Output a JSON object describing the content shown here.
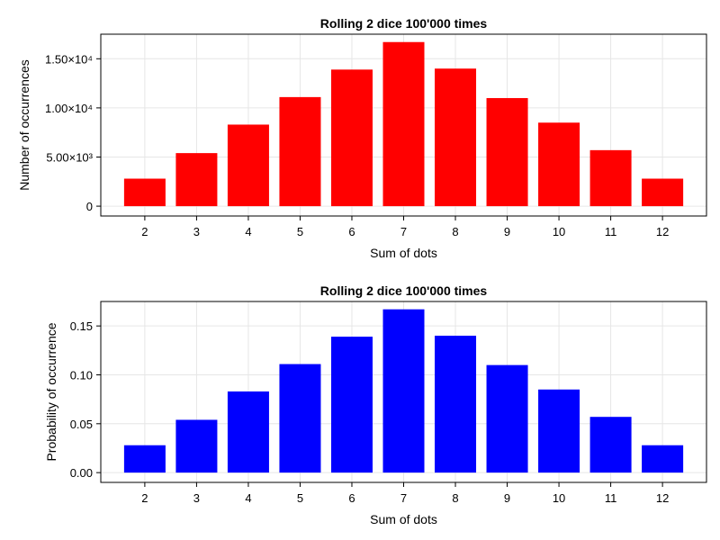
{
  "chart_data": [
    {
      "type": "bar",
      "title": "Rolling 2 dice 100'000 times",
      "xlabel": "Sum of dots",
      "ylabel": "Number of occurrences",
      "categories": [
        2,
        3,
        4,
        5,
        6,
        7,
        8,
        9,
        10,
        11,
        12
      ],
      "values": [
        2800,
        5400,
        8300,
        11100,
        13900,
        16700,
        14000,
        11000,
        8500,
        5700,
        2800
      ],
      "ylim": [
        -1000,
        17500
      ],
      "yticks": [
        0,
        5000,
        10000,
        15000
      ],
      "ytick_labels": [
        "0",
        "5.00×10³",
        "1.00×10⁴",
        "1.50×10⁴"
      ],
      "color": "#ff0000",
      "grid": true
    },
    {
      "type": "bar",
      "title": "Rolling 2 dice 100'000 times",
      "xlabel": "Sum of dots",
      "ylabel": "Probability of occurrence",
      "categories": [
        2,
        3,
        4,
        5,
        6,
        7,
        8,
        9,
        10,
        11,
        12
      ],
      "values": [
        0.028,
        0.054,
        0.083,
        0.111,
        0.139,
        0.167,
        0.14,
        0.11,
        0.085,
        0.057,
        0.028
      ],
      "ylim": [
        -0.01,
        0.175
      ],
      "yticks": [
        0.0,
        0.05,
        0.1,
        0.15
      ],
      "ytick_labels": [
        "0.00",
        "0.05",
        "0.10",
        "0.15"
      ],
      "color": "#0000ff",
      "grid": true
    }
  ]
}
